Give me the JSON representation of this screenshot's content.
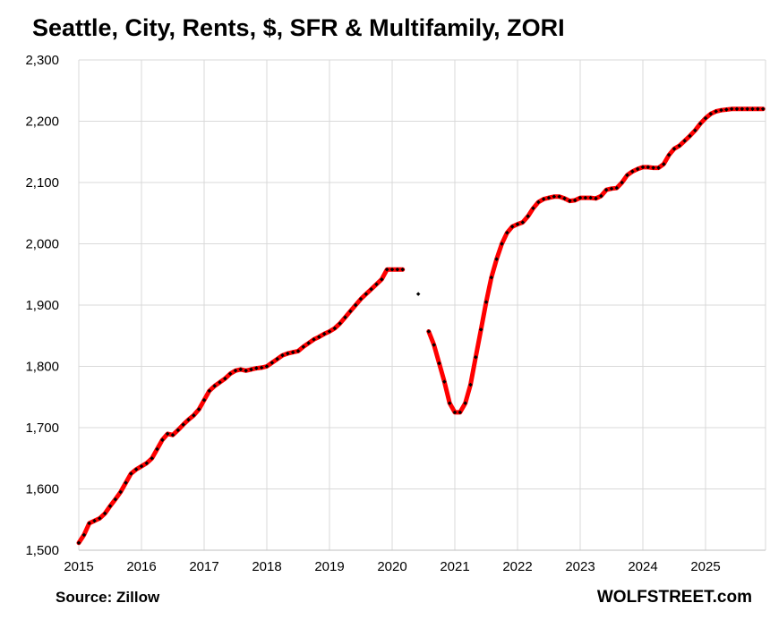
{
  "chart_data": {
    "type": "line",
    "title": "Seattle, City, Rents, $, SFR & Multifamily, ZORI",
    "xlabel": "",
    "ylabel": "",
    "ylim": [
      1500,
      2300
    ],
    "y_ticks": [
      "1,500",
      "1,600",
      "1,700",
      "1,800",
      "1,900",
      "2,000",
      "2,100",
      "2,200",
      "2,300"
    ],
    "x_ticks": [
      "2015",
      "2016",
      "2017",
      "2018",
      "2019",
      "2020",
      "2021",
      "2022",
      "2023",
      "2024",
      "2025"
    ],
    "grid": true,
    "line_color": "#ff0000",
    "marker_color": "#000000",
    "series": [
      {
        "segments": [
          {
            "x": [
              "2015-01",
              "2015-02",
              "2015-03",
              "2015-04",
              "2015-05",
              "2015-06",
              "2015-07",
              "2015-08",
              "2015-09",
              "2015-10",
              "2015-11",
              "2015-12",
              "2016-01",
              "2016-02",
              "2016-03",
              "2016-04",
              "2016-05",
              "2016-06",
              "2016-07",
              "2016-08",
              "2016-09",
              "2016-10",
              "2016-11",
              "2016-12",
              "2017-01",
              "2017-02",
              "2017-03",
              "2017-04",
              "2017-05",
              "2017-06",
              "2017-07",
              "2017-08",
              "2017-09",
              "2017-10",
              "2017-11",
              "2017-12",
              "2018-01",
              "2018-02",
              "2018-03",
              "2018-04",
              "2018-05",
              "2018-06",
              "2018-07",
              "2018-08",
              "2018-09",
              "2018-10",
              "2018-11",
              "2018-12",
              "2019-01",
              "2019-02",
              "2019-03",
              "2019-04",
              "2019-05",
              "2019-06",
              "2019-07",
              "2019-08",
              "2019-09",
              "2019-10",
              "2019-11",
              "2019-12",
              "2020-01",
              "2020-02",
              "2020-03"
            ],
            "y": [
              1512,
              1525,
              1544,
              1548,
              1552,
              1560,
              1572,
              1583,
              1595,
              1610,
              1625,
              1632,
              1637,
              1642,
              1650,
              1665,
              1680,
              1690,
              1688,
              1696,
              1705,
              1713,
              1720,
              1730,
              1745,
              1760,
              1768,
              1774,
              1780,
              1788,
              1793,
              1795,
              1793,
              1795,
              1797,
              1798,
              1800,
              1806,
              1812,
              1818,
              1821,
              1823,
              1825,
              1832,
              1838,
              1844,
              1848,
              1853,
              1857,
              1862,
              1870,
              1880,
              1890,
              1900,
              1910,
              1918,
              1926,
              1934,
              1942,
              1958,
              1958,
              1958,
              1958
            ]
          },
          {
            "x": [
              "2020-06"
            ],
            "y": [
              1918
            ]
          },
          {
            "x": [
              "2020-08",
              "2020-09",
              "2020-10",
              "2020-11",
              "2020-12",
              "2021-01",
              "2021-02",
              "2021-03",
              "2021-04",
              "2021-05",
              "2021-06",
              "2021-07",
              "2021-08",
              "2021-09",
              "2021-10",
              "2021-11",
              "2021-12",
              "2022-01",
              "2022-02",
              "2022-03",
              "2022-04",
              "2022-05",
              "2022-06",
              "2022-07",
              "2022-08",
              "2022-09",
              "2022-10",
              "2022-11",
              "2022-12",
              "2023-01",
              "2023-02",
              "2023-03",
              "2023-04",
              "2023-05",
              "2023-06",
              "2023-07",
              "2023-08",
              "2023-09",
              "2023-10",
              "2023-11",
              "2023-12",
              "2024-01",
              "2024-02",
              "2024-03",
              "2024-04",
              "2024-05",
              "2024-06",
              "2024-07",
              "2024-08",
              "2024-09",
              "2024-10",
              "2024-11",
              "2024-12",
              "2025-01",
              "2025-02",
              "2025-03",
              "2025-04",
              "2025-05",
              "2025-06",
              "2025-07",
              "2025-08",
              "2025-09",
              "2025-10",
              "2025-11",
              "2025-12"
            ],
            "y": [
              1857,
              1835,
              1805,
              1775,
              1740,
              1725,
              1725,
              1740,
              1770,
              1815,
              1860,
              1905,
              1945,
              1975,
              2000,
              2018,
              2028,
              2032,
              2035,
              2045,
              2058,
              2068,
              2073,
              2075,
              2077,
              2077,
              2074,
              2070,
              2071,
              2075,
              2075,
              2075,
              2074,
              2078,
              2088,
              2090,
              2091,
              2100,
              2112,
              2118,
              2122,
              2125,
              2125,
              2124,
              2124,
              2130,
              2145,
              2155,
              2160,
              2168,
              2176,
              2185,
              2196,
              2205,
              2212,
              2216,
              2218,
              2219,
              2220,
              2220,
              2220,
              2220,
              2220,
              2220,
              2220
            ]
          }
        ]
      }
    ]
  },
  "source": "Source: Zillow",
  "brand": "WOLFSTREET.com"
}
